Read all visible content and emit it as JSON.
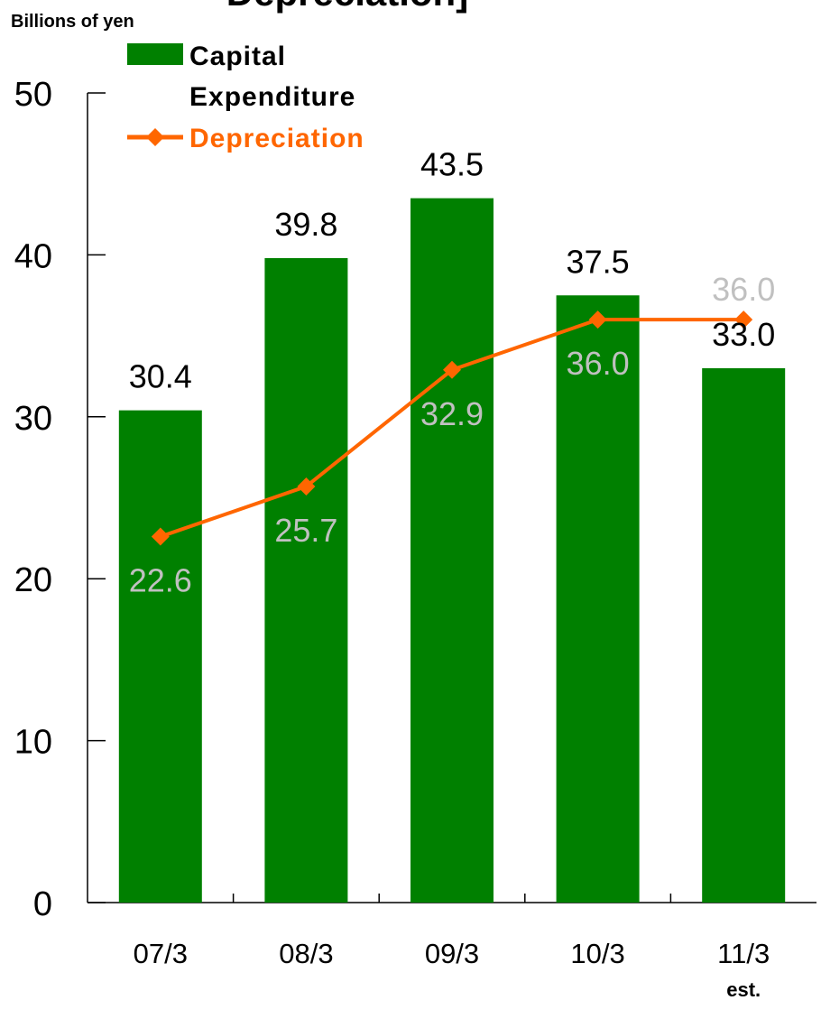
{
  "chart_data": {
    "type": "bar",
    "title": "Depreciation]",
    "ylabel": "Billions of yen",
    "ylim": [
      0,
      50
    ],
    "yticks": [
      0,
      10,
      20,
      30,
      40,
      50
    ],
    "categories": [
      "07/3",
      "08/3",
      "09/3",
      "10/3",
      "11/3"
    ],
    "category_notes": [
      "",
      "",
      "",
      "",
      "est."
    ],
    "series": [
      {
        "name": "Capital Expenditure",
        "name_lines": [
          "Capital",
          "Expenditure"
        ],
        "type": "bar",
        "color": "#008000",
        "label_color": "#000000",
        "values": [
          30.4,
          39.8,
          43.5,
          37.5,
          33.0
        ],
        "labels": [
          "30.4",
          "39.8",
          "43.5",
          "37.5",
          "33.0"
        ]
      },
      {
        "name": "Depreciation",
        "type": "line",
        "marker": "diamond",
        "color": "#FF6600",
        "label_color": "#C0C0C0",
        "values": [
          22.6,
          25.7,
          32.9,
          36.0,
          36.0
        ],
        "labels": [
          "22.6",
          "25.7",
          "32.9",
          "36.0",
          "36.0"
        ]
      }
    ],
    "grid": false,
    "legend": "top-left"
  }
}
